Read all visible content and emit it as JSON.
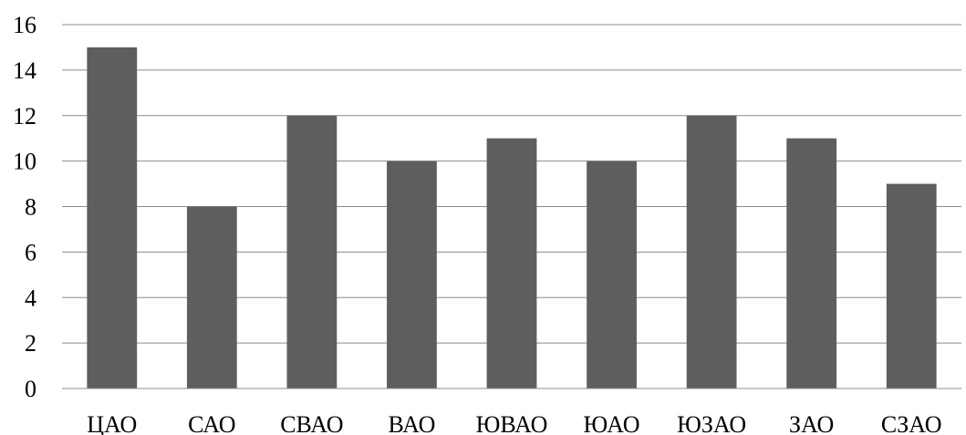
{
  "chart_data": {
    "type": "bar",
    "categories": [
      "ЦАО",
      "САО",
      "СВАО",
      "ВАО",
      "ЮВАО",
      "ЮАО",
      "ЮЗАО",
      "ЗАО",
      "СЗАО"
    ],
    "values": [
      15,
      8,
      12,
      10,
      11,
      10,
      12,
      11,
      9
    ],
    "ylim": [
      0,
      16
    ],
    "yticks": [
      0,
      2,
      4,
      6,
      8,
      10,
      12,
      14,
      16
    ],
    "grid": true,
    "bar_color": "#5e5e5e",
    "grid_color": "#8c8c8c"
  }
}
